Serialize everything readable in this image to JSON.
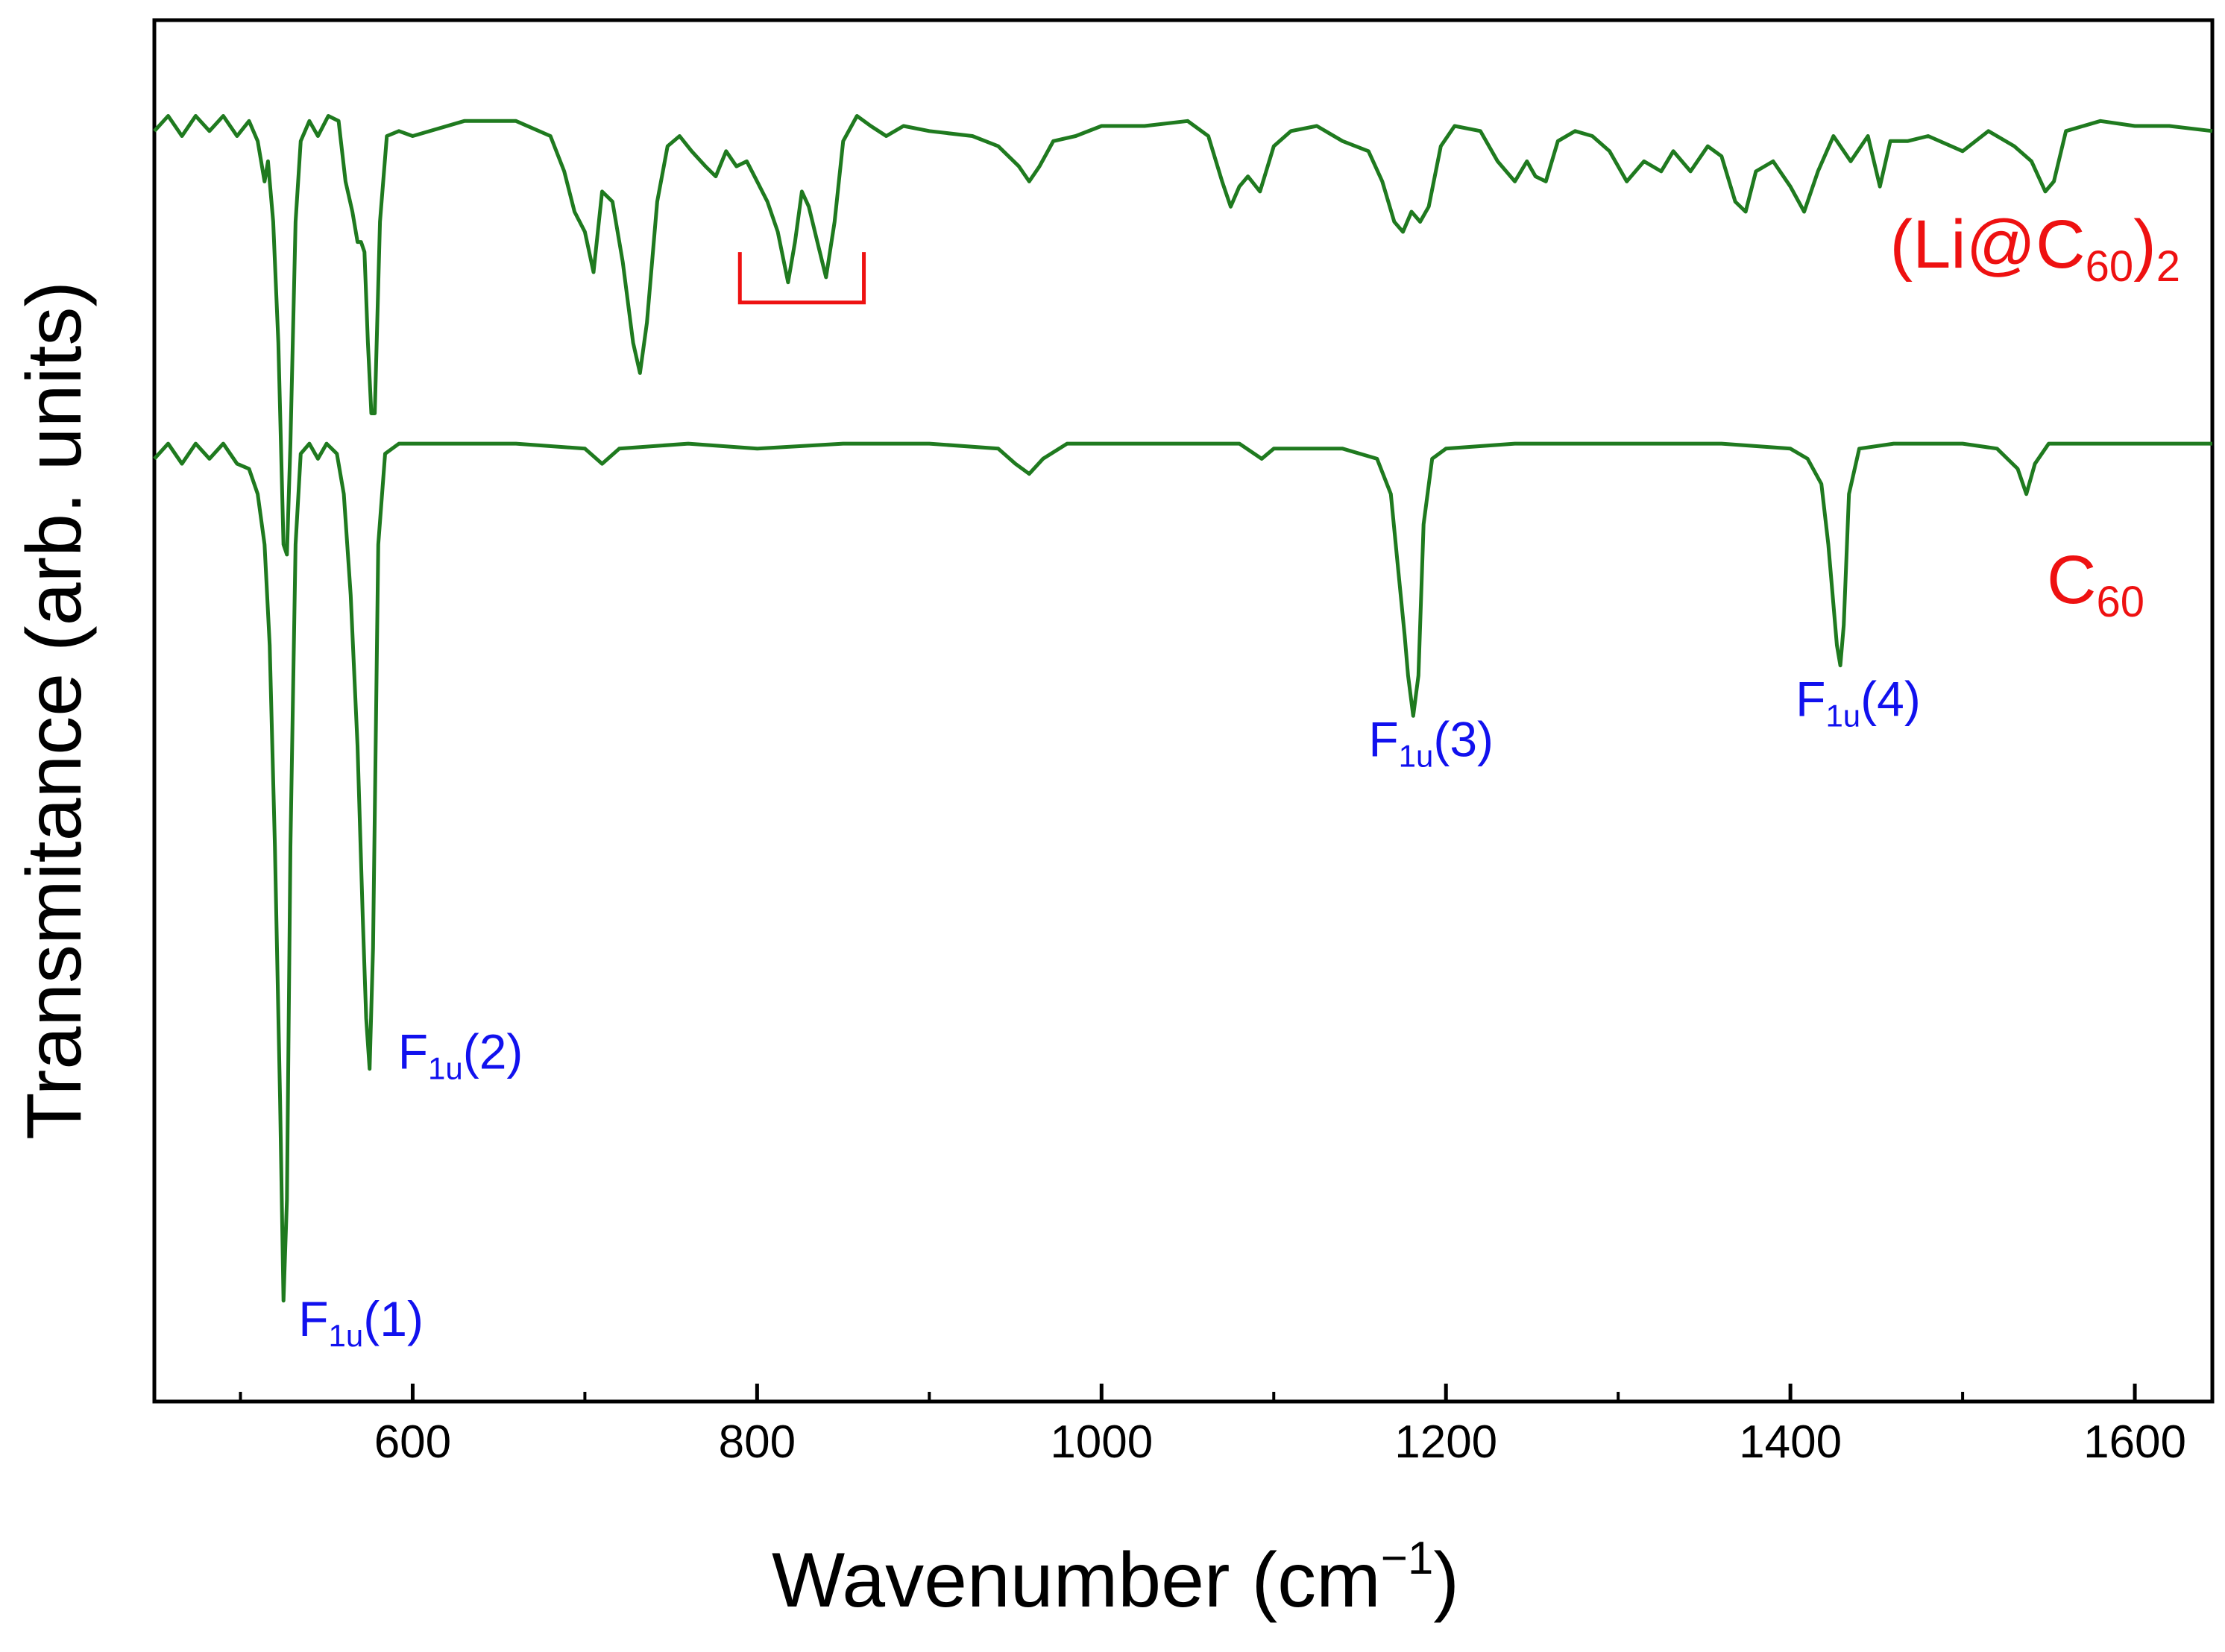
{
  "colors": {
    "curve": "#1f7a1f",
    "series_label": "#ee1111",
    "peak_label": "#1111ee",
    "bracket": "#ee1111",
    "axis": "#000000",
    "background": "#ffffff"
  },
  "chart_data": {
    "type": "line",
    "title": "",
    "xlabel": {
      "main": "Wavenumber (cm",
      "sup": "−1",
      "close": ")"
    },
    "ylabel": "Transmitance (arb. units)",
    "xlim": [
      450,
      1645
    ],
    "ylim": [
      -0.35,
      1.02
    ],
    "x_ticks": [
      600,
      800,
      1000,
      1200,
      1400,
      1600
    ],
    "x_tick_labels": [
      "600",
      "800",
      "1000",
      "1200",
      "1400",
      "1600"
    ],
    "y_ticks": [],
    "grid": false,
    "legend": "none",
    "series": [
      {
        "name": "(Li@C60)2",
        "label": {
          "main": "(Li@C",
          "sub": "60",
          "close": ")",
          "sub2": "2"
        },
        "baseline": 0.92,
        "points": [
          [
            450,
            0.91
          ],
          [
            458,
            0.925
          ],
          [
            466,
            0.905
          ],
          [
            474,
            0.925
          ],
          [
            482,
            0.91
          ],
          [
            490,
            0.925
          ],
          [
            498,
            0.905
          ],
          [
            505,
            0.92
          ],
          [
            510,
            0.9
          ],
          [
            514,
            0.86
          ],
          [
            516,
            0.88
          ],
          [
            519,
            0.82
          ],
          [
            522,
            0.7
          ],
          [
            525,
            0.5
          ],
          [
            527,
            0.49
          ],
          [
            529,
            0.6
          ],
          [
            532,
            0.82
          ],
          [
            535,
            0.9
          ],
          [
            540,
            0.92
          ],
          [
            545,
            0.905
          ],
          [
            551,
            0.925
          ],
          [
            557,
            0.92
          ],
          [
            561,
            0.86
          ],
          [
            565,
            0.83
          ],
          [
            568,
            0.8
          ],
          [
            570,
            0.8
          ],
          [
            572,
            0.79
          ],
          [
            574,
            0.7
          ],
          [
            576,
            0.63
          ],
          [
            578,
            0.63
          ],
          [
            581,
            0.82
          ],
          [
            585,
            0.905
          ],
          [
            592,
            0.91
          ],
          [
            600,
            0.905
          ],
          [
            630,
            0.92
          ],
          [
            660,
            0.92
          ],
          [
            680,
            0.905
          ],
          [
            688,
            0.87
          ],
          [
            694,
            0.83
          ],
          [
            700,
            0.81
          ],
          [
            705,
            0.77
          ],
          [
            710,
            0.85
          ],
          [
            716,
            0.84
          ],
          [
            722,
            0.78
          ],
          [
            728,
            0.7
          ],
          [
            732,
            0.67
          ],
          [
            736,
            0.72
          ],
          [
            742,
            0.84
          ],
          [
            748,
            0.895
          ],
          [
            755,
            0.905
          ],
          [
            762,
            0.89
          ],
          [
            770,
            0.875
          ],
          [
            776,
            0.865
          ],
          [
            782,
            0.89
          ],
          [
            788,
            0.875
          ],
          [
            794,
            0.88
          ],
          [
            800,
            0.86
          ],
          [
            806,
            0.84
          ],
          [
            812,
            0.81
          ],
          [
            818,
            0.76
          ],
          [
            822,
            0.8
          ],
          [
            826,
            0.85
          ],
          [
            830,
            0.835
          ],
          [
            835,
            0.8
          ],
          [
            840,
            0.765
          ],
          [
            845,
            0.82
          ],
          [
            850,
            0.9
          ],
          [
            858,
            0.925
          ],
          [
            866,
            0.915
          ],
          [
            875,
            0.905
          ],
          [
            885,
            0.915
          ],
          [
            900,
            0.91
          ],
          [
            925,
            0.905
          ],
          [
            940,
            0.895
          ],
          [
            952,
            0.875
          ],
          [
            958,
            0.86
          ],
          [
            964,
            0.875
          ],
          [
            972,
            0.9
          ],
          [
            985,
            0.905
          ],
          [
            1000,
            0.915
          ],
          [
            1025,
            0.915
          ],
          [
            1050,
            0.92
          ],
          [
            1062,
            0.905
          ],
          [
            1070,
            0.86
          ],
          [
            1075,
            0.835
          ],
          [
            1080,
            0.855
          ],
          [
            1085,
            0.865
          ],
          [
            1092,
            0.85
          ],
          [
            1100,
            0.895
          ],
          [
            1110,
            0.91
          ],
          [
            1125,
            0.915
          ],
          [
            1140,
            0.9
          ],
          [
            1155,
            0.89
          ],
          [
            1163,
            0.86
          ],
          [
            1170,
            0.82
          ],
          [
            1175,
            0.81
          ],
          [
            1180,
            0.83
          ],
          [
            1185,
            0.82
          ],
          [
            1190,
            0.835
          ],
          [
            1197,
            0.895
          ],
          [
            1205,
            0.915
          ],
          [
            1220,
            0.91
          ],
          [
            1230,
            0.88
          ],
          [
            1240,
            0.86
          ],
          [
            1247,
            0.88
          ],
          [
            1252,
            0.865
          ],
          [
            1258,
            0.86
          ],
          [
            1265,
            0.9
          ],
          [
            1275,
            0.91
          ],
          [
            1285,
            0.905
          ],
          [
            1295,
            0.89
          ],
          [
            1305,
            0.86
          ],
          [
            1315,
            0.88
          ],
          [
            1325,
            0.87
          ],
          [
            1332,
            0.89
          ],
          [
            1342,
            0.87
          ],
          [
            1352,
            0.895
          ],
          [
            1360,
            0.885
          ],
          [
            1368,
            0.84
          ],
          [
            1374,
            0.83
          ],
          [
            1380,
            0.87
          ],
          [
            1390,
            0.88
          ],
          [
            1400,
            0.855
          ],
          [
            1408,
            0.83
          ],
          [
            1416,
            0.87
          ],
          [
            1425,
            0.905
          ],
          [
            1435,
            0.88
          ],
          [
            1445,
            0.905
          ],
          [
            1452,
            0.855
          ],
          [
            1458,
            0.9
          ],
          [
            1468,
            0.9
          ],
          [
            1480,
            0.905
          ],
          [
            1500,
            0.89
          ],
          [
            1515,
            0.91
          ],
          [
            1530,
            0.895
          ],
          [
            1540,
            0.88
          ],
          [
            1548,
            0.85
          ],
          [
            1553,
            0.86
          ],
          [
            1560,
            0.91
          ],
          [
            1580,
            0.92
          ],
          [
            1600,
            0.915
          ],
          [
            1620,
            0.915
          ],
          [
            1645,
            0.91
          ]
        ]
      },
      {
        "name": "C60",
        "label": {
          "main": "C",
          "sub": "60",
          "close": "",
          "sub2": ""
        },
        "baseline": 0.6,
        "points": [
          [
            450,
            0.585
          ],
          [
            458,
            0.6
          ],
          [
            466,
            0.58
          ],
          [
            474,
            0.6
          ],
          [
            482,
            0.585
          ],
          [
            490,
            0.6
          ],
          [
            498,
            0.58
          ],
          [
            505,
            0.575
          ],
          [
            510,
            0.55
          ],
          [
            514,
            0.5
          ],
          [
            517,
            0.4
          ],
          [
            520,
            0.2
          ],
          [
            523,
            -0.05
          ],
          [
            525,
            -0.25
          ],
          [
            527,
            -0.15
          ],
          [
            529,
            0.2
          ],
          [
            532,
            0.5
          ],
          [
            535,
            0.59
          ],
          [
            540,
            0.6
          ],
          [
            545,
            0.585
          ],
          [
            550,
            0.6
          ],
          [
            556,
            0.59
          ],
          [
            560,
            0.55
          ],
          [
            564,
            0.45
          ],
          [
            568,
            0.3
          ],
          [
            571,
            0.13
          ],
          [
            573,
            0.03
          ],
          [
            575,
            -0.02
          ],
          [
            577,
            0.1
          ],
          [
            580,
            0.5
          ],
          [
            584,
            0.59
          ],
          [
            592,
            0.6
          ],
          [
            620,
            0.6
          ],
          [
            660,
            0.6
          ],
          [
            700,
            0.595
          ],
          [
            710,
            0.58
          ],
          [
            720,
            0.595
          ],
          [
            760,
            0.6
          ],
          [
            800,
            0.595
          ],
          [
            850,
            0.6
          ],
          [
            900,
            0.6
          ],
          [
            940,
            0.595
          ],
          [
            950,
            0.58
          ],
          [
            958,
            0.57
          ],
          [
            966,
            0.585
          ],
          [
            980,
            0.6
          ],
          [
            1030,
            0.6
          ],
          [
            1080,
            0.6
          ],
          [
            1093,
            0.585
          ],
          [
            1100,
            0.595
          ],
          [
            1140,
            0.595
          ],
          [
            1160,
            0.585
          ],
          [
            1168,
            0.55
          ],
          [
            1172,
            0.48
          ],
          [
            1176,
            0.41
          ],
          [
            1178,
            0.37
          ],
          [
            1181,
            0.33
          ],
          [
            1184,
            0.37
          ],
          [
            1187,
            0.52
          ],
          [
            1192,
            0.585
          ],
          [
            1200,
            0.595
          ],
          [
            1240,
            0.6
          ],
          [
            1280,
            0.6
          ],
          [
            1320,
            0.6
          ],
          [
            1360,
            0.6
          ],
          [
            1400,
            0.595
          ],
          [
            1410,
            0.585
          ],
          [
            1418,
            0.56
          ],
          [
            1422,
            0.5
          ],
          [
            1425,
            0.44
          ],
          [
            1427,
            0.4
          ],
          [
            1429,
            0.38
          ],
          [
            1431,
            0.42
          ],
          [
            1434,
            0.55
          ],
          [
            1440,
            0.595
          ],
          [
            1460,
            0.6
          ],
          [
            1500,
            0.6
          ],
          [
            1520,
            0.595
          ],
          [
            1532,
            0.575
          ],
          [
            1537,
            0.55
          ],
          [
            1542,
            0.58
          ],
          [
            1550,
            0.6
          ],
          [
            1590,
            0.6
          ],
          [
            1620,
            0.6
          ],
          [
            1645,
            0.6
          ]
        ]
      }
    ],
    "annotations": [
      {
        "name": "peak-f1u-1",
        "text": {
          "main": "F",
          "sub": "1u",
          "rest": "(1)"
        },
        "x": 525,
        "y": -0.285
      },
      {
        "name": "peak-f1u-2",
        "text": {
          "main": "F",
          "sub": "1u",
          "rest": "(2)"
        },
        "x": 575,
        "y": -0.02
      },
      {
        "name": "peak-f1u-3",
        "text": {
          "main": "F",
          "sub": "1u",
          "rest": "(3)"
        },
        "x": 1181,
        "y": 0.29
      },
      {
        "name": "peak-f1u-4",
        "text": {
          "main": "F",
          "sub": "1u",
          "rest": "(4)"
        },
        "x": 1429,
        "y": 0.33
      }
    ],
    "bracket": {
      "x_start": 790,
      "x_end": 862,
      "y_top": 0.79,
      "y_bottom": 0.74
    }
  }
}
